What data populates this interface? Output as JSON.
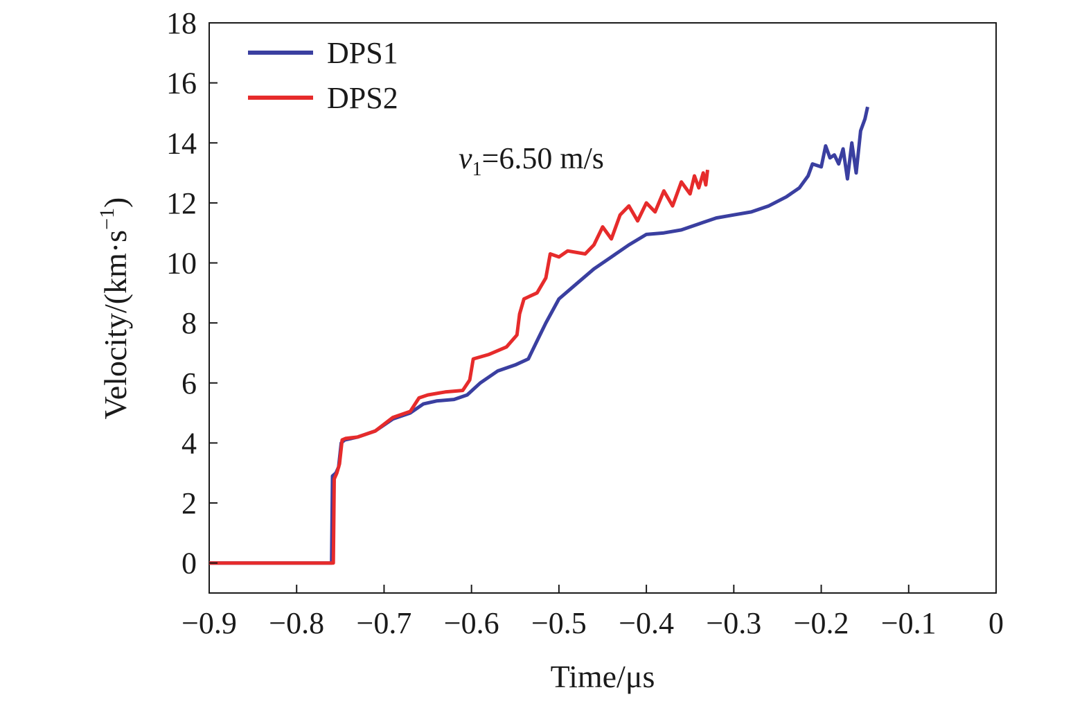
{
  "chart_data": {
    "type": "line",
    "xlabel": "Time/μs",
    "ylabel_main": "Velocity/(km·s",
    "ylabel_sup": "−1",
    "ylabel_close": ")",
    "xlim": [
      -0.9,
      0
    ],
    "ylim": [
      -1,
      18
    ],
    "xticks": [
      -0.9,
      -0.8,
      -0.7,
      -0.6,
      -0.5,
      -0.4,
      -0.3,
      -0.2,
      -0.1,
      0
    ],
    "xtick_labels": [
      "−0.9",
      "−0.8",
      "−0.7",
      "−0.6",
      "−0.5",
      "−0.4",
      "−0.3",
      "−0.2",
      "−0.1",
      "0"
    ],
    "yticks": [
      0,
      2,
      4,
      6,
      8,
      10,
      12,
      14,
      16,
      18
    ],
    "ytick_labels": [
      "0",
      "2",
      "4",
      "6",
      "8",
      "10",
      "12",
      "14",
      "16",
      "18"
    ],
    "grid": false,
    "legend_position": "top-left",
    "annotation": {
      "var": "v",
      "sub": "1",
      "rest": "=6.50 m/s"
    },
    "series": [
      {
        "name": "DPS1",
        "color": "#3a3fa0",
        "points": [
          [
            -0.9,
            0
          ],
          [
            -0.76,
            0
          ],
          [
            -0.759,
            2.9
          ],
          [
            -0.755,
            3.0
          ],
          [
            -0.752,
            3.2
          ],
          [
            -0.749,
            4.0
          ],
          [
            -0.745,
            4.1
          ],
          [
            -0.73,
            4.2
          ],
          [
            -0.71,
            4.4
          ],
          [
            -0.69,
            4.8
          ],
          [
            -0.67,
            5.0
          ],
          [
            -0.655,
            5.3
          ],
          [
            -0.64,
            5.4
          ],
          [
            -0.62,
            5.45
          ],
          [
            -0.605,
            5.6
          ],
          [
            -0.59,
            6.0
          ],
          [
            -0.57,
            6.4
          ],
          [
            -0.55,
            6.6
          ],
          [
            -0.535,
            6.8
          ],
          [
            -0.525,
            7.4
          ],
          [
            -0.515,
            8.0
          ],
          [
            -0.5,
            8.8
          ],
          [
            -0.48,
            9.3
          ],
          [
            -0.46,
            9.8
          ],
          [
            -0.44,
            10.2
          ],
          [
            -0.42,
            10.6
          ],
          [
            -0.4,
            10.95
          ],
          [
            -0.38,
            11.0
          ],
          [
            -0.36,
            11.1
          ],
          [
            -0.34,
            11.3
          ],
          [
            -0.32,
            11.5
          ],
          [
            -0.3,
            11.6
          ],
          [
            -0.28,
            11.7
          ],
          [
            -0.26,
            11.9
          ],
          [
            -0.24,
            12.2
          ],
          [
            -0.225,
            12.5
          ],
          [
            -0.215,
            12.9
          ],
          [
            -0.21,
            13.3
          ],
          [
            -0.2,
            13.2
          ],
          [
            -0.195,
            13.9
          ],
          [
            -0.19,
            13.5
          ],
          [
            -0.185,
            13.6
          ],
          [
            -0.18,
            13.3
          ],
          [
            -0.175,
            13.8
          ],
          [
            -0.17,
            12.8
          ],
          [
            -0.165,
            14.0
          ],
          [
            -0.16,
            13.0
          ],
          [
            -0.155,
            14.4
          ],
          [
            -0.15,
            14.8
          ],
          [
            -0.147,
            15.2
          ]
        ]
      },
      {
        "name": "DPS2",
        "color": "#e62b2b",
        "points": [
          [
            -0.9,
            0
          ],
          [
            -0.758,
            0
          ],
          [
            -0.757,
            2.8
          ],
          [
            -0.754,
            3.0
          ],
          [
            -0.751,
            3.3
          ],
          [
            -0.748,
            4.1
          ],
          [
            -0.744,
            4.15
          ],
          [
            -0.73,
            4.2
          ],
          [
            -0.71,
            4.4
          ],
          [
            -0.69,
            4.85
          ],
          [
            -0.67,
            5.05
          ],
          [
            -0.66,
            5.5
          ],
          [
            -0.65,
            5.6
          ],
          [
            -0.63,
            5.7
          ],
          [
            -0.61,
            5.75
          ],
          [
            -0.602,
            6.1
          ],
          [
            -0.598,
            6.8
          ],
          [
            -0.58,
            6.95
          ],
          [
            -0.56,
            7.2
          ],
          [
            -0.548,
            7.6
          ],
          [
            -0.545,
            8.3
          ],
          [
            -0.54,
            8.8
          ],
          [
            -0.525,
            9.0
          ],
          [
            -0.515,
            9.5
          ],
          [
            -0.51,
            10.3
          ],
          [
            -0.5,
            10.2
          ],
          [
            -0.49,
            10.4
          ],
          [
            -0.47,
            10.3
          ],
          [
            -0.46,
            10.6
          ],
          [
            -0.45,
            11.2
          ],
          [
            -0.44,
            10.8
          ],
          [
            -0.43,
            11.6
          ],
          [
            -0.42,
            11.9
          ],
          [
            -0.41,
            11.4
          ],
          [
            -0.4,
            12.0
          ],
          [
            -0.39,
            11.7
          ],
          [
            -0.38,
            12.4
          ],
          [
            -0.37,
            11.9
          ],
          [
            -0.36,
            12.7
          ],
          [
            -0.35,
            12.3
          ],
          [
            -0.345,
            12.9
          ],
          [
            -0.34,
            12.5
          ],
          [
            -0.335,
            13.0
          ],
          [
            -0.332,
            12.6
          ],
          [
            -0.33,
            13.1
          ]
        ]
      }
    ]
  }
}
